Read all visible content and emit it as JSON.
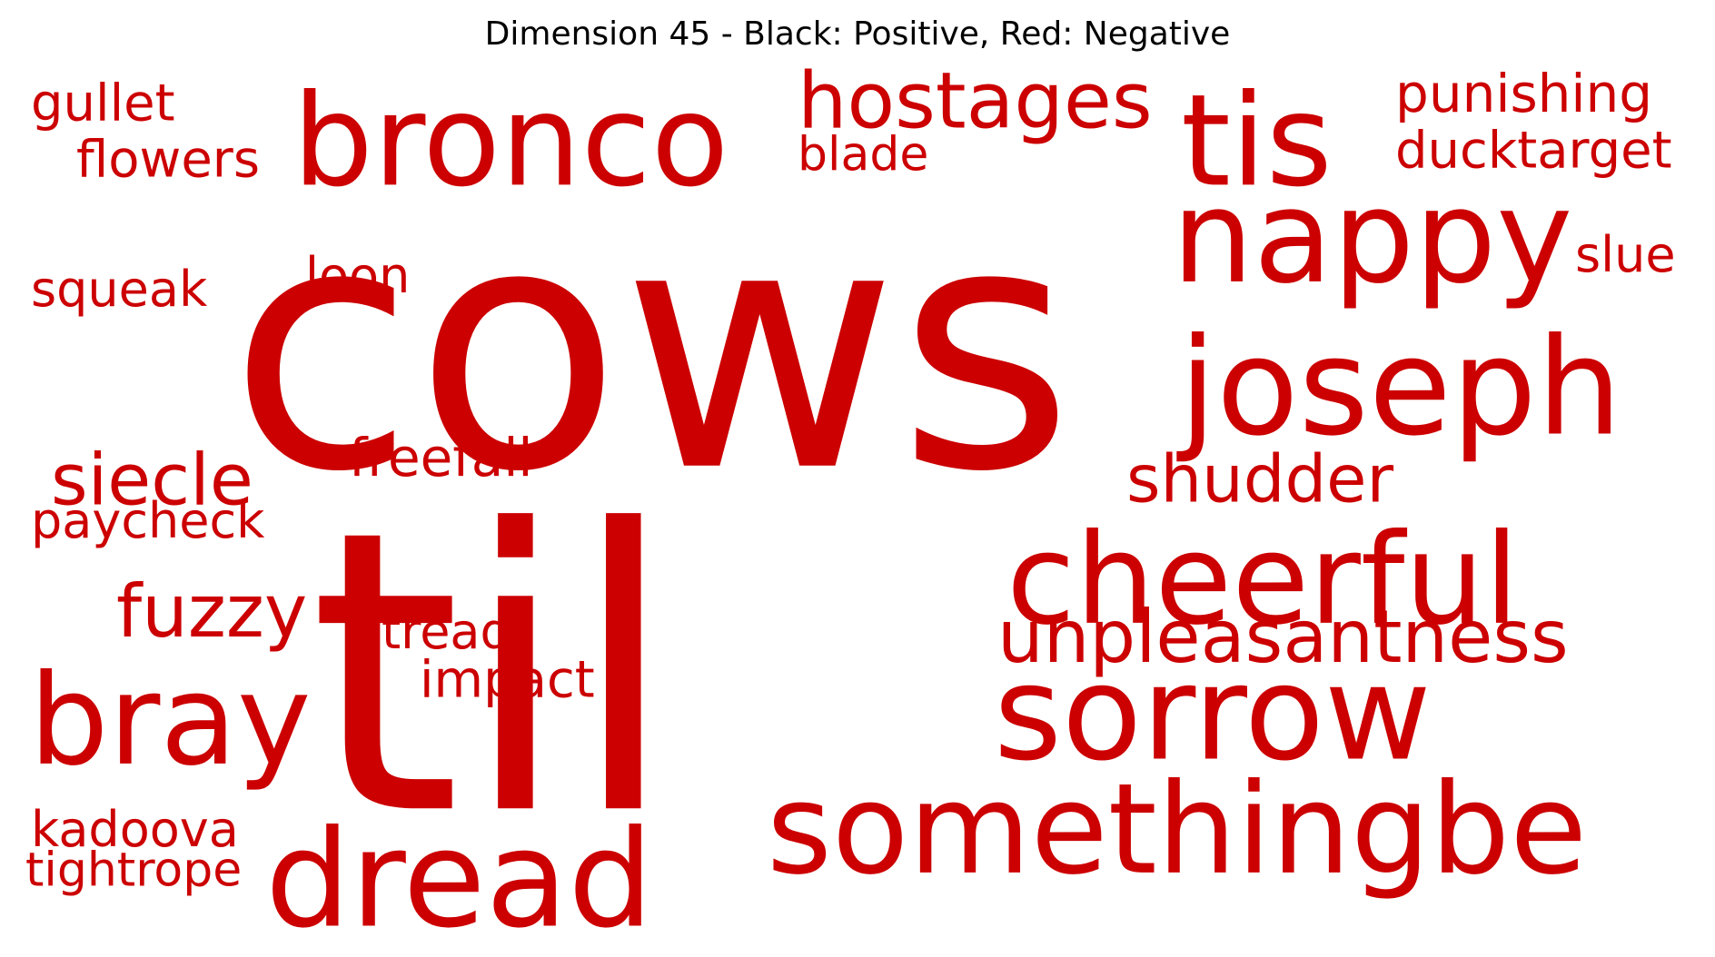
{
  "title": "Dimension 45 - Black: Positive, Red: Negative",
  "colors": {
    "negative": "#cc0000",
    "positive": "#000000",
    "background": "#ffffff"
  },
  "words": {
    "cows": "cows",
    "til": "til",
    "bronco": "bronco",
    "tis": "tis",
    "hostages": "hostages",
    "blade": "blade",
    "punishing": "punishing",
    "ducktarget": "ducktarget",
    "gullet": "gullet",
    "flowers": "flowers",
    "nappy": "nappy",
    "slue": "slue",
    "squeak": "squeak",
    "loon": "loon",
    "joseph": "joseph",
    "freefall": "freefall",
    "shudder": "shudder",
    "siecle": "siecle",
    "paycheck": "paycheck",
    "cheerful": "cheerful",
    "fuzzy": "fuzzy",
    "tread": "tread",
    "unpleasantness": "unpleasantness",
    "bray": "bray",
    "impact": "impact",
    "sorrow": "sorrow",
    "kadoova": "kadoova",
    "tightrope": "tightrope",
    "dread": "dread",
    "somethingbe": "somethingbe"
  }
}
